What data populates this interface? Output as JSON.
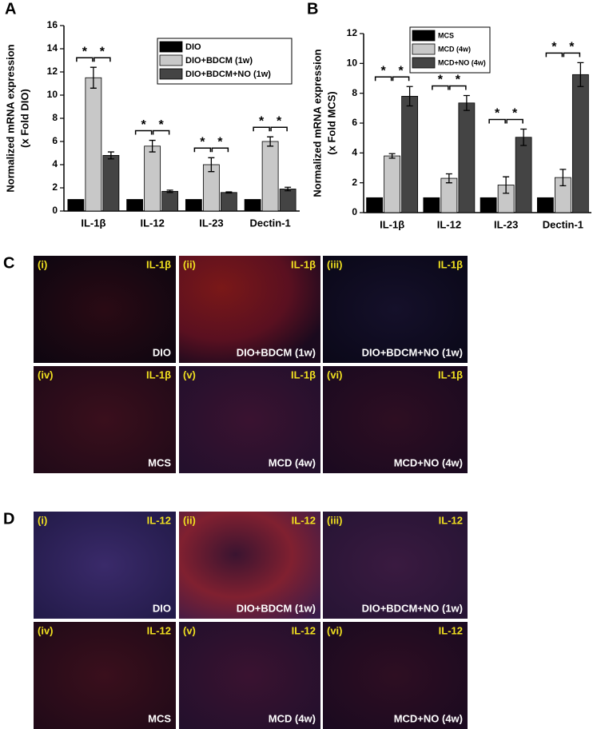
{
  "chart_data": [
    {
      "type": "bar",
      "panel_label": "A",
      "ylabel": [
        "Normalized mRNA expression",
        "(x Fold DIO)"
      ],
      "categories": [
        "IL-1β",
        "IL-12",
        "IL-23",
        "Dectin-1"
      ],
      "series": [
        {
          "name": "DIO",
          "color": "#000000",
          "values": [
            1,
            1,
            1,
            1
          ]
        },
        {
          "name": "DIO+BDCM (1w)",
          "color": "#c8c8c8",
          "values": [
            11.5,
            5.6,
            4.0,
            6.0
          ],
          "errors": [
            0.9,
            0.5,
            0.6,
            0.4
          ]
        },
        {
          "name": "DIO+BDCM+NO (1w)",
          "color": "#444444",
          "values": [
            4.8,
            1.7,
            1.6,
            1.9
          ],
          "errors": [
            0.3,
            0.1,
            0.05,
            0.15
          ]
        }
      ],
      "significance_label": "*",
      "ylim": [
        0,
        16
      ],
      "yticks": [
        0,
        2,
        4,
        6,
        8,
        10,
        12,
        14,
        16
      ],
      "legend": "upper right"
    },
    {
      "type": "bar",
      "panel_label": "B",
      "ylabel": [
        "Normalized mRNA expression",
        "(x Fold MCS)"
      ],
      "categories": [
        "IL-1β",
        "IL-12",
        "IL-23",
        "Dectin-1"
      ],
      "series": [
        {
          "name": "MCS",
          "color": "#000000",
          "values": [
            1,
            1,
            1,
            1
          ]
        },
        {
          "name": "MCD (4w)",
          "color": "#c8c8c8",
          "values": [
            3.8,
            2.3,
            1.85,
            2.35
          ],
          "errors": [
            0.15,
            0.3,
            0.55,
            0.55
          ]
        },
        {
          "name": "MCD+NO (4w)",
          "color": "#444444",
          "values": [
            7.8,
            7.35,
            5.05,
            9.25
          ],
          "errors": [
            0.65,
            0.5,
            0.55,
            0.8
          ]
        }
      ],
      "significance_label": "*",
      "ylim": [
        0,
        12
      ],
      "yticks": [
        0,
        2,
        4,
        6,
        8,
        10,
        12
      ],
      "legend": "upper left"
    }
  ],
  "panels": [
    {
      "label": "C",
      "cells": [
        {
          "index": "(i)",
          "marker": "IL-1β",
          "group": "DIO"
        },
        {
          "index": "(ii)",
          "marker": "IL-1β",
          "group": "DIO+BDCM (1w)"
        },
        {
          "index": "(iii)",
          "marker": "IL-1β",
          "group": "DIO+BDCM+NO (1w)"
        },
        {
          "index": "(iv)",
          "marker": "IL-1β",
          "group": "MCS"
        },
        {
          "index": "(v)",
          "marker": "IL-1β",
          "group": "MCD (4w)"
        },
        {
          "index": "(vi)",
          "marker": "IL-1β",
          "group": "MCD+NO (4w)"
        }
      ]
    },
    {
      "label": "D",
      "cells": [
        {
          "index": "(i)",
          "marker": "IL-12",
          "group": "DIO"
        },
        {
          "index": "(ii)",
          "marker": "IL-12",
          "group": "DIO+BDCM (1w)"
        },
        {
          "index": "(iii)",
          "marker": "IL-12",
          "group": "DIO+BDCM+NO (1w)"
        },
        {
          "index": "(iv)",
          "marker": "IL-12",
          "group": "MCS"
        },
        {
          "index": "(v)",
          "marker": "IL-12",
          "group": "MCD (4w)"
        },
        {
          "index": "(vi)",
          "marker": "IL-12",
          "group": "MCD+NO (4w)"
        }
      ]
    }
  ]
}
